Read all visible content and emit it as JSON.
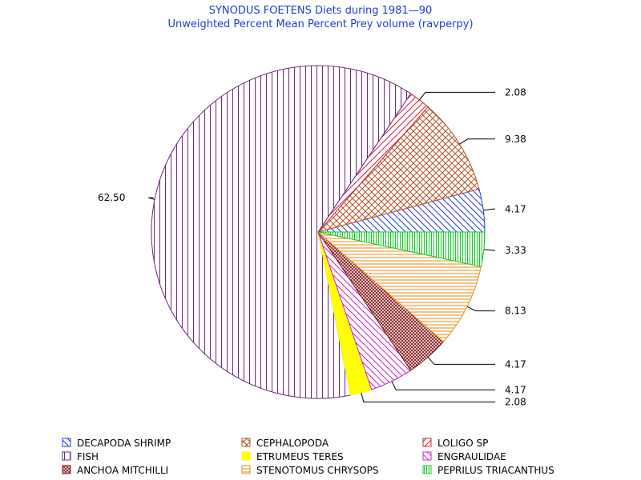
{
  "chart_data": {
    "type": "pie",
    "title": "SYNODUS FOETENS Diets during 1981—90",
    "subtitle": "Unweighted Percent Mean Percent Prey  volume (ravperpy)",
    "slices": [
      {
        "name": "DECAPODA SHRIMP",
        "value": 4.17,
        "label": "4.17",
        "color": "#1f3bd6",
        "pattern": "diag-down"
      },
      {
        "name": "CEPHALOPODA",
        "value": 9.38,
        "label": "9.38",
        "color": "#b8562a",
        "pattern": "cross-diag"
      },
      {
        "name": "LOLIGO SP",
        "value": 2.08,
        "label": "2.08",
        "color": "#d0203a",
        "pattern": "diag-up"
      },
      {
        "name": "FISH",
        "value": 62.5,
        "label": "62.50",
        "color": "#6a2a7a",
        "pattern": "vertical"
      },
      {
        "name": "ETRUMEUS TERES",
        "value": 2.08,
        "label": "2.08",
        "color": "#ffff00",
        "pattern": "solid"
      },
      {
        "name": "ENGRAULIDAE",
        "value": 4.17,
        "label": "4.17",
        "color": "#d020c8",
        "pattern": "diag-down"
      },
      {
        "name": "ANCHOA MITCHILLI",
        "value": 4.17,
        "label": "4.17",
        "color": "#8a2020",
        "pattern": "cross-dense"
      },
      {
        "name": "STENOTOMUS CHRYSOPS",
        "value": 8.13,
        "label": "8.13",
        "color": "#f08a10",
        "pattern": "horizontal"
      },
      {
        "name": "PEPRILUS TRIACANTHUS",
        "value": 3.33,
        "label": "3.33",
        "color": "#10d020",
        "pattern": "vertical-dense"
      }
    ],
    "legend_placement": "bottom"
  }
}
